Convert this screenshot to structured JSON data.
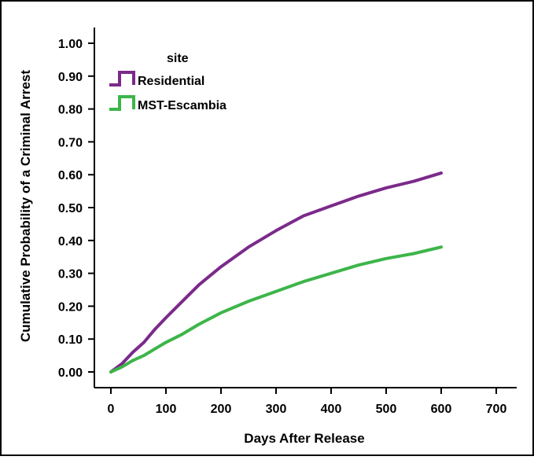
{
  "chart_data": {
    "type": "line",
    "title": "",
    "xlabel": "Days After Release",
    "ylabel": "Cumulative Probability of a Criminal Arrest",
    "xlim": [
      0,
      700
    ],
    "ylim": [
      0,
      1.0
    ],
    "x_ticks": [
      "0",
      "100",
      "200",
      "300",
      "400",
      "500",
      "600",
      "700"
    ],
    "y_ticks": [
      "0.00",
      "0.10",
      "0.20",
      "0.30",
      "0.40",
      "0.50",
      "0.60",
      "0.70",
      "0.80",
      "0.90",
      "1.00"
    ],
    "grid": false,
    "legend": {
      "title": "site",
      "placement": "top-left"
    },
    "series": [
      {
        "name": "Residential",
        "color": "#7B2A8A",
        "x": [
          0,
          20,
          40,
          60,
          80,
          100,
          130,
          160,
          200,
          250,
          300,
          350,
          400,
          450,
          500,
          550,
          600
        ],
        "y": [
          0.0,
          0.025,
          0.06,
          0.09,
          0.13,
          0.165,
          0.215,
          0.265,
          0.32,
          0.38,
          0.43,
          0.475,
          0.505,
          0.535,
          0.56,
          0.58,
          0.605
        ]
      },
      {
        "name": "MST-Escambia",
        "color": "#3DB54A",
        "x": [
          0,
          20,
          40,
          60,
          80,
          100,
          130,
          160,
          200,
          250,
          300,
          350,
          400,
          450,
          500,
          550,
          600
        ],
        "y": [
          0.0,
          0.015,
          0.035,
          0.05,
          0.07,
          0.09,
          0.115,
          0.145,
          0.18,
          0.215,
          0.245,
          0.275,
          0.3,
          0.325,
          0.345,
          0.36,
          0.38
        ]
      }
    ]
  }
}
